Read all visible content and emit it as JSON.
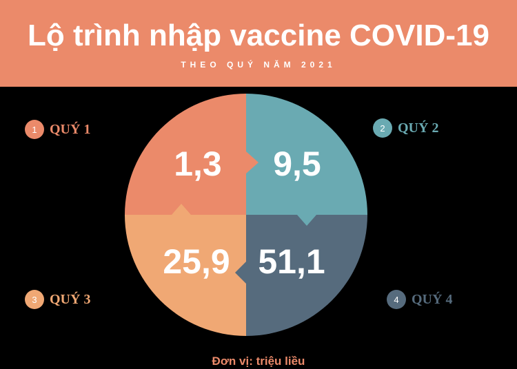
{
  "header": {
    "title": "Lộ trình nhập vaccine COVID-19",
    "subtitle": "THEO QUÝ NĂM 2021"
  },
  "colors": {
    "header_bg": "#EB8A6A",
    "background": "#000000",
    "q1": "#EB8A6A",
    "q2": "#6AAAB2",
    "q3": "#F0A874",
    "q4": "#566B7D",
    "unit_text": "#EB8A6A"
  },
  "chart_data": {
    "type": "pie",
    "title": "Lộ trình nhập vaccine COVID-19",
    "subtitle": "THEO QUÝ NĂM 2021",
    "categories": [
      "QUÝ 1",
      "QUÝ 2",
      "QUÝ 3",
      "QUÝ 4"
    ],
    "values": [
      1.3,
      9.5,
      25.9,
      51.1
    ],
    "value_labels": [
      "1,3",
      "9,5",
      "25,9",
      "51,1"
    ],
    "unit": "Đơn vị: triệu liều",
    "note": ""
  },
  "legend": [
    {
      "number": "1",
      "label": "QUÝ 1"
    },
    {
      "number": "2",
      "label": "QUÝ 2"
    },
    {
      "number": "3",
      "label": "QUÝ 3"
    },
    {
      "number": "4",
      "label": "QUÝ 4"
    }
  ]
}
